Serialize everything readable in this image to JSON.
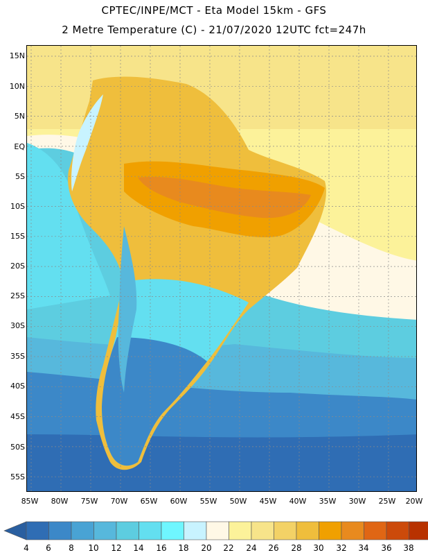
{
  "header": {
    "line1": "CPTEC/INPE/MCT  -   Eta Model 15km  -  GFS",
    "line2": "2 Metre Temperature (C)  -  21/07/2020 12UTC fct=247h"
  },
  "map": {
    "region": "South America",
    "variable": "2 Metre Temperature",
    "units": "C",
    "lat_labels": [
      "15N",
      "10N",
      "5N",
      "EQ",
      "5S",
      "10S",
      "15S",
      "20S",
      "25S",
      "30S",
      "35S",
      "40S",
      "45S",
      "50S",
      "55S"
    ],
    "lon_labels": [
      "85W",
      "80W",
      "75W",
      "70W",
      "65W",
      "60W",
      "55W",
      "50W",
      "45W",
      "40W",
      "35W",
      "30W",
      "25W",
      "20W"
    ],
    "lat_range": [
      17.5,
      -57.5
    ],
    "lon_range": [
      -85.5,
      -20.5
    ]
  },
  "colorbar": {
    "labels": [
      "4",
      "6",
      "8",
      "10",
      "12",
      "14",
      "16",
      "18",
      "20",
      "22",
      "24",
      "26",
      "28",
      "30",
      "32",
      "34",
      "36",
      "38"
    ],
    "colors": [
      "#2f6db4",
      "#3c88c8",
      "#49a3d4",
      "#57b8dc",
      "#5dcde0",
      "#63dff0",
      "#6ff6ff",
      "#c8f3ff",
      "#fff8e6",
      "#fcf29a",
      "#f7e48a",
      "#f3d266",
      "#efbe3c",
      "#f0a000",
      "#e88a1e",
      "#e06614",
      "#cc4a0a",
      "#b83200"
    ],
    "under_color": "#2a5fa0",
    "over_color": "#a02800"
  }
}
